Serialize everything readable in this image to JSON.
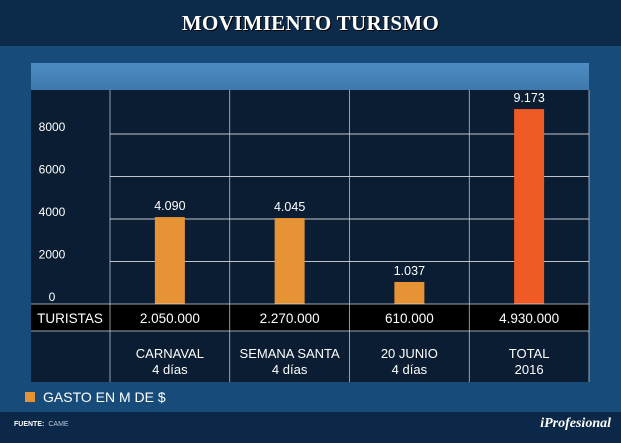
{
  "header": {
    "title": "MOVIMIENTO TURISMO"
  },
  "chart_data": {
    "type": "bar",
    "title": "MOVIMIENTO TURISMO",
    "categories": [
      "CARNAVAL",
      "SEMANA SANTA",
      "20 JUNIO",
      "TOTAL"
    ],
    "category_sublabels": [
      "4 días",
      "4 días",
      "4 días",
      "2016"
    ],
    "series": [
      {
        "name": "GASTO EN M DE $",
        "values": [
          4090,
          4045,
          1037,
          9173
        ],
        "value_labels": [
          "4.090",
          "4.045",
          "1.037",
          "9.173"
        ]
      }
    ],
    "bar_colors": [
      "#e59335",
      "#e59335",
      "#e59335",
      "#f05a24"
    ],
    "yticks": [
      0,
      2000,
      4000,
      6000,
      8000
    ],
    "ylim": [
      0,
      10000
    ],
    "grid": true,
    "legend_position": "bottom-left",
    "table_row": {
      "label": "TURISTAS",
      "values": [
        "2.050.000",
        "2.270.000",
        "610.000",
        "4.930.000"
      ]
    }
  },
  "legend": {
    "label": "GASTO EN M DE $",
    "color": "#e59335"
  },
  "footer": {
    "source_label": "FUENTE:",
    "source_value": "CAME",
    "brand": "iProfesional"
  }
}
